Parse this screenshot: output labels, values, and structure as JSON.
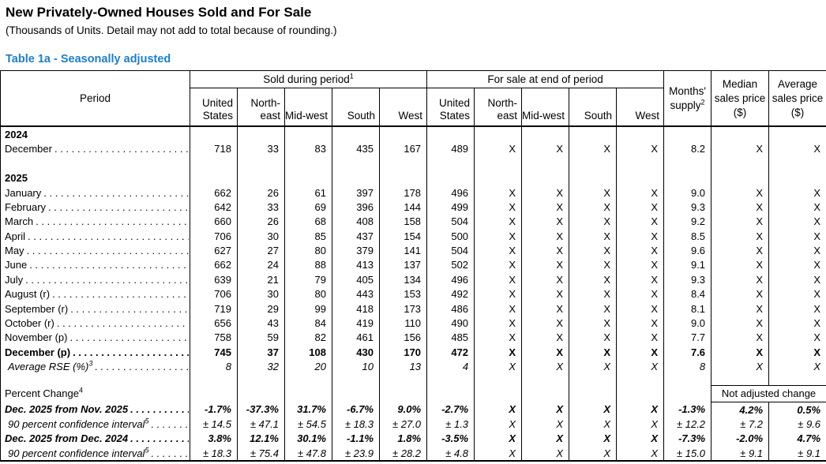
{
  "page": {
    "title": "New Privately-Owned Houses Sold and For Sale",
    "subtitle": "(Thousands of Units.  Detail may not add to total because of rounding.)",
    "accent_color": "#1f7ec6",
    "text_color": "#000000"
  },
  "table": {
    "table_title": "Table 1a - Seasonally adjusted",
    "not_adjusted_label": "Not adjusted change",
    "column_keys": [
      "sold-united-states",
      "sold-northeast",
      "sold-midwest",
      "sold-south",
      "sold-west",
      "forsale-united-states",
      "forsale-northeast",
      "forsale-midwest",
      "forsale-south",
      "forsale-west",
      "months-supply",
      "median-sales-price",
      "average-sales-price"
    ],
    "header": {
      "period_label": "Period",
      "sold_group_label": "Sold during period",
      "sold_group_sup": "1",
      "forsale_group_label": "For sale at end of period",
      "regions": [
        "United States",
        "North-east",
        "Mid-west",
        "South",
        "West"
      ],
      "months_line1": "Months'",
      "months_line2": "supply",
      "months_sup": "2",
      "median_line1": "Median",
      "median_line2": "sales price",
      "median_line3": "($)",
      "average_line1": "Average",
      "average_line2": "sales price",
      "average_line3": "($)"
    },
    "rows": [
      {
        "type": "year",
        "style": "year",
        "label": "2024"
      },
      {
        "type": "data",
        "label": "December",
        "values": [
          "718",
          "33",
          "83",
          "435",
          "167",
          "489",
          "X",
          "X",
          "X",
          "X",
          "8.2",
          "X",
          "X"
        ]
      },
      {
        "type": "rowspacer"
      },
      {
        "type": "year",
        "style": "year",
        "label": "2025"
      },
      {
        "type": "data",
        "label": "January",
        "values": [
          "662",
          "26",
          "61",
          "397",
          "178",
          "496",
          "X",
          "X",
          "X",
          "X",
          "9.0",
          "X",
          "X"
        ]
      },
      {
        "type": "data",
        "label": "February",
        "values": [
          "642",
          "33",
          "69",
          "396",
          "144",
          "499",
          "X",
          "X",
          "X",
          "X",
          "9.3",
          "X",
          "X"
        ]
      },
      {
        "type": "data",
        "label": "March",
        "values": [
          "660",
          "26",
          "68",
          "408",
          "158",
          "504",
          "X",
          "X",
          "X",
          "X",
          "9.2",
          "X",
          "X"
        ]
      },
      {
        "type": "data",
        "label": "April",
        "values": [
          "706",
          "30",
          "85",
          "437",
          "154",
          "500",
          "X",
          "X",
          "X",
          "X",
          "8.5",
          "X",
          "X"
        ]
      },
      {
        "type": "data",
        "label": "May",
        "values": [
          "627",
          "27",
          "80",
          "379",
          "141",
          "504",
          "X",
          "X",
          "X",
          "X",
          "9.6",
          "X",
          "X"
        ]
      },
      {
        "type": "data",
        "label": "June",
        "values": [
          "662",
          "24",
          "88",
          "413",
          "137",
          "502",
          "X",
          "X",
          "X",
          "X",
          "9.1",
          "X",
          "X"
        ]
      },
      {
        "type": "data",
        "label": "July",
        "values": [
          "639",
          "21",
          "79",
          "405",
          "134",
          "496",
          "X",
          "X",
          "X",
          "X",
          "9.3",
          "X",
          "X"
        ]
      },
      {
        "type": "data",
        "label": "August (r)",
        "values": [
          "706",
          "30",
          "80",
          "443",
          "153",
          "492",
          "X",
          "X",
          "X",
          "X",
          "8.4",
          "X",
          "X"
        ]
      },
      {
        "type": "data",
        "label": "September (r)",
        "values": [
          "719",
          "29",
          "99",
          "418",
          "173",
          "486",
          "X",
          "X",
          "X",
          "X",
          "8.1",
          "X",
          "X"
        ]
      },
      {
        "type": "data",
        "label": "October (r)",
        "values": [
          "656",
          "43",
          "84",
          "419",
          "110",
          "490",
          "X",
          "X",
          "X",
          "X",
          "9.0",
          "X",
          "X"
        ]
      },
      {
        "type": "data",
        "label": "November (p)",
        "values": [
          "758",
          "59",
          "82",
          "461",
          "156",
          "485",
          "X",
          "X",
          "X",
          "X",
          "7.7",
          "X",
          "X"
        ]
      },
      {
        "type": "data",
        "style": "bold",
        "label": "December (p)",
        "values": [
          "745",
          "37",
          "108",
          "430",
          "170",
          "472",
          "X",
          "X",
          "X",
          "X",
          "7.6",
          "X",
          "X"
        ]
      },
      {
        "type": "data",
        "style": "italic",
        "indent": true,
        "label": "Average RSE (%)",
        "sup": "3",
        "values": [
          "8",
          "32",
          "20",
          "10",
          "13",
          "4",
          "X",
          "X",
          "X",
          "X",
          "8",
          "X",
          "X"
        ]
      },
      {
        "type": "spacer"
      },
      {
        "type": "pc-header",
        "label": "Percent Change",
        "sup": "4"
      },
      {
        "type": "data",
        "style": "bolditalic",
        "label": "Dec. 2025 from Nov. 2025",
        "values": [
          "-1.7%",
          "-37.3%",
          "31.7%",
          "-6.7%",
          "9.0%",
          "-2.7%",
          "X",
          "X",
          "X",
          "X",
          "-1.3%",
          "4.2%",
          "0.5%"
        ]
      },
      {
        "type": "data",
        "style": "italic",
        "indent": true,
        "label": "90 percent confidence interval",
        "sup": "5",
        "values": [
          "± 14.5",
          "± 47.1",
          "± 54.5",
          "± 18.3",
          "± 27.0",
          "± 1.3",
          "X",
          "X",
          "X",
          "X",
          "± 12.2",
          "± 7.2",
          "± 9.6"
        ]
      },
      {
        "type": "data",
        "style": "bolditalic",
        "label": "Dec. 2025 from Dec. 2024",
        "values": [
          "3.8%",
          "12.1%",
          "30.1%",
          "-1.1%",
          "1.8%",
          "-3.5%",
          "X",
          "X",
          "X",
          "X",
          "-7.3%",
          "-2.0%",
          "4.7%"
        ]
      },
      {
        "type": "data",
        "style": "italic",
        "indent": true,
        "label": "90 percent confidence interval",
        "sup": "5",
        "values": [
          "± 18.3",
          "± 75.4",
          "± 47.8",
          "± 23.9",
          "± 28.2",
          "± 4.8",
          "X",
          "X",
          "X",
          "X",
          "± 15.0",
          "± 9.1",
          "± 9.1"
        ]
      }
    ]
  }
}
